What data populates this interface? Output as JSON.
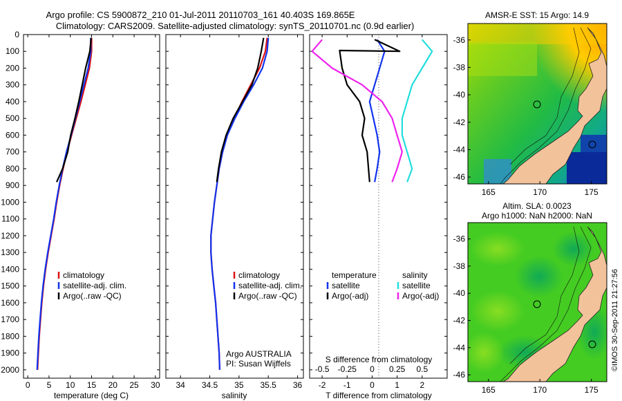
{
  "title_line1": "Argo profile: CS 5900872_210 01-Jul-2011 20110703_161 40.403S 169.865E",
  "title_line2": "Climatology: CARS2009. Satellite-adjusted climatology: synTS_20110701.nc (0.9d earlier)",
  "credit": "Argo AUSTRALIA",
  "credit_pi": "PI: Susan Wijffels",
  "imos_stamp": "©IMOS 30-Sep-2011 21:27:56",
  "colors": {
    "climatology": "#dd1111",
    "satellite": "#1133ee",
    "argo": "#000000",
    "sat_salinity": "#22dddd",
    "argo_salinity": "#ee22ee",
    "land": "#f2c29b"
  },
  "chart_data": [
    {
      "type": "line",
      "id": "temperature",
      "xlabel": "temperature (deg C)",
      "xlim": [
        -1,
        31
      ],
      "ylim": [
        0,
        2050
      ],
      "xticks": [
        "0",
        "5",
        "10",
        "15",
        "20",
        "25",
        "30"
      ],
      "xtick_values": [
        0,
        5,
        10,
        15,
        20,
        25,
        30
      ],
      "yticks": [
        "0",
        "100",
        "200",
        "300",
        "400",
        "500",
        "600",
        "700",
        "800",
        "900",
        "1000",
        "1100",
        "1200",
        "1300",
        "1400",
        "1500",
        "1600",
        "1700",
        "1800",
        "1900",
        "2000"
      ],
      "ytick_values": [
        0,
        100,
        200,
        300,
        400,
        500,
        600,
        700,
        800,
        900,
        1000,
        1100,
        1200,
        1300,
        1400,
        1500,
        1600,
        1700,
        1800,
        1900,
        2000
      ],
      "legend": [
        "climatology",
        "satellite-adj. clim.",
        "Argo(..raw -QC)"
      ],
      "series": [
        {
          "name": "climatology",
          "color": "#dd1111",
          "x": [
            15.0,
            15.0,
            14.5,
            13.5,
            12.5,
            11.4,
            10.3,
            9.2,
            8.3,
            7.5,
            6.8,
            6.2,
            5.5,
            4.8,
            4.2,
            3.7,
            3.3,
            3.0,
            2.7,
            2.5,
            2.3
          ],
          "y": [
            20,
            100,
            200,
            300,
            400,
            500,
            600,
            700,
            800,
            900,
            1000,
            1100,
            1200,
            1300,
            1400,
            1500,
            1600,
            1700,
            1800,
            1900,
            2000
          ]
        },
        {
          "name": "satellite-adj. clim.",
          "color": "#1133ee",
          "x": [
            14.8,
            14.8,
            14.2,
            13.2,
            12.2,
            11.2,
            10.2,
            9.1,
            8.2,
            7.4,
            6.7,
            6.1,
            5.4,
            4.7,
            4.1,
            3.6,
            3.2,
            2.9,
            2.6,
            2.4,
            2.2
          ],
          "y": [
            20,
            100,
            200,
            300,
            400,
            500,
            600,
            700,
            800,
            900,
            1000,
            1100,
            1200,
            1300,
            1400,
            1500,
            1600,
            1700,
            1800,
            1900,
            2000
          ]
        },
        {
          "name": "Argo(..raw -QC)",
          "color": "#000000",
          "x": [
            14.9,
            14.6,
            13.6,
            12.8,
            12.0,
            11.1,
            10.1,
            9.4,
            8.2,
            6.8
          ],
          "y": [
            20,
            100,
            200,
            300,
            400,
            500,
            600,
            700,
            800,
            880
          ]
        }
      ]
    },
    {
      "type": "line",
      "id": "salinity",
      "xlabel": "salinity",
      "xlim": [
        33.75,
        36.1
      ],
      "ylim": [
        0,
        2050
      ],
      "xticks": [
        "34",
        "34.5",
        "35",
        "35.5",
        "36"
      ],
      "xtick_values": [
        34,
        34.5,
        35,
        35.5,
        36
      ],
      "legend": [
        "climatology",
        "satellite-adj. clim.",
        "Argo(..raw -QC)"
      ],
      "series": [
        {
          "name": "climatology",
          "color": "#dd1111",
          "x": [
            35.48,
            35.45,
            35.35,
            35.2,
            35.05,
            34.92,
            34.8,
            34.72,
            34.66,
            34.62,
            34.58,
            34.55,
            34.52,
            34.52,
            34.54,
            34.57,
            34.6,
            34.62,
            34.64,
            34.66,
            34.67
          ],
          "y": [
            20,
            100,
            200,
            300,
            400,
            500,
            600,
            700,
            800,
            900,
            1000,
            1100,
            1200,
            1300,
            1400,
            1500,
            1600,
            1700,
            1800,
            1900,
            2000
          ]
        },
        {
          "name": "satellite-adj. clim.",
          "color": "#1133ee",
          "x": [
            35.5,
            35.48,
            35.4,
            35.25,
            35.08,
            34.93,
            34.8,
            34.72,
            34.66,
            34.62,
            34.58,
            34.55,
            34.52,
            34.52,
            34.54,
            34.57,
            34.6,
            34.62,
            34.64,
            34.66,
            34.67
          ],
          "y": [
            20,
            100,
            200,
            300,
            400,
            500,
            600,
            700,
            800,
            900,
            1000,
            1100,
            1200,
            1300,
            1400,
            1500,
            1600,
            1700,
            1800,
            1900,
            2000
          ]
        },
        {
          "name": "Argo(..raw -QC)",
          "color": "#000000",
          "x": [
            35.42,
            35.38,
            35.32,
            35.22,
            35.06,
            34.9,
            34.78,
            34.7,
            34.65,
            34.62
          ],
          "y": [
            20,
            100,
            200,
            300,
            400,
            500,
            600,
            700,
            800,
            880
          ]
        }
      ]
    },
    {
      "type": "line",
      "id": "difference",
      "xlabel": "T difference from climatology",
      "xlabel_top": "S difference from climatology",
      "xlim": [
        -2.5,
        3.0
      ],
      "ylim": [
        0,
        2050
      ],
      "xticks": [
        "-2",
        "-1",
        "0",
        "1",
        "2"
      ],
      "xtick_values": [
        -2,
        -1,
        0,
        1,
        2
      ],
      "sticks": [
        "-0.5",
        "-0.25",
        "0",
        "0.25",
        "0.5"
      ],
      "stick_values": [
        -0.5,
        -0.25,
        0,
        0.25,
        0.5
      ],
      "legend_headers": [
        "temperature",
        "salinity"
      ],
      "legend": [
        "satellite",
        "Argo(-adj)",
        "satellite",
        "Argo(-adj)"
      ],
      "series": [
        {
          "name": "temperature satellite",
          "color": "#1133ee",
          "x": [
            0.2,
            0.5,
            0.3,
            0.1,
            -0.1,
            0.05,
            0.2,
            0.3,
            0.2,
            0.1
          ],
          "y": [
            30,
            100,
            200,
            300,
            400,
            500,
            600,
            700,
            800,
            880
          ]
        },
        {
          "name": "temperature Argo(-adj)",
          "color": "#000000",
          "x": [
            0.1,
            1.1,
            -1.3,
            -1.2,
            -1.0,
            -0.5,
            -0.3,
            -0.4,
            -0.2,
            -0.1
          ],
          "y": [
            30,
            100,
            95,
            200,
            300,
            400,
            500,
            600,
            700,
            880
          ]
        },
        {
          "name": "salinity satellite",
          "color": "#22dddd",
          "x": [
            0.5,
            0.6,
            0.5,
            0.4,
            0.35,
            0.3,
            0.3,
            0.35,
            0.4,
            0.35
          ],
          "y": [
            30,
            100,
            200,
            300,
            400,
            500,
            600,
            700,
            800,
            880
          ]
        },
        {
          "name": "salinity Argo(-adj)",
          "color": "#ee22ee",
          "x": [
            -0.5,
            -0.6,
            -0.4,
            -0.1,
            0.1,
            0.2,
            0.25,
            0.3,
            0.25,
            0.2
          ],
          "y": [
            30,
            100,
            200,
            300,
            400,
            500,
            600,
            700,
            800,
            880
          ]
        }
      ]
    },
    {
      "type": "heatmap",
      "id": "sst_map",
      "title": "AMSR-E SST: 15 Argo: 14.9",
      "xlim": [
        163,
        176.5
      ],
      "ylim": [
        -46.5,
        -34.8
      ],
      "xticks": [
        "165",
        "170",
        "175"
      ],
      "xtick_values": [
        165,
        170,
        175
      ],
      "yticks": [
        "-36",
        "-38",
        "-40",
        "-42",
        "-44",
        "-46"
      ],
      "ytick_values": [
        -36,
        -38,
        -40,
        -42,
        -44,
        -46
      ],
      "markers": [
        {
          "lon": 169.9,
          "lat": -40.4
        },
        {
          "lon": 175.1,
          "lat": -43.5
        }
      ]
    },
    {
      "type": "heatmap",
      "id": "sla_map",
      "title_line1": "Altim. SLA: 0.0023",
      "title_line2": "Argo h1000: NaN h2000: NaN",
      "xlim": [
        163,
        176.5
      ],
      "ylim": [
        -46.5,
        -34.8
      ],
      "xticks": [
        "165",
        "170",
        "175"
      ],
      "xtick_values": [
        165,
        170,
        175
      ],
      "yticks": [
        "-36",
        "-38",
        "-40",
        "-42",
        "-44",
        "-46"
      ],
      "ytick_values": [
        -36,
        -38,
        -40,
        -42,
        -44,
        -46
      ],
      "markers": [
        {
          "lon": 169.9,
          "lat": -40.4
        },
        {
          "lon": 175.1,
          "lat": -43.5
        }
      ]
    }
  ]
}
